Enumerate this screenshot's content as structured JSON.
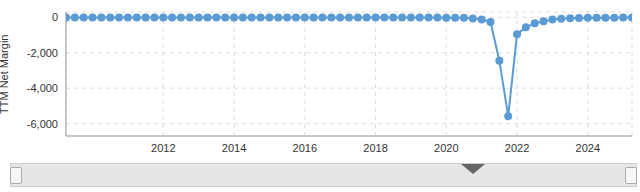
{
  "chart_data": {
    "type": "line",
    "y_label": "TTM Net Margin",
    "x": [
      2009.25,
      2009.5,
      2009.75,
      2010,
      2010.25,
      2010.5,
      2010.75,
      2011,
      2011.25,
      2011.5,
      2011.75,
      2012,
      2012.25,
      2012.5,
      2012.75,
      2013,
      2013.25,
      2013.5,
      2013.75,
      2014,
      2014.25,
      2014.5,
      2014.75,
      2015,
      2015.25,
      2015.5,
      2015.75,
      2016,
      2016.25,
      2016.5,
      2016.75,
      2017,
      2017.25,
      2017.5,
      2017.75,
      2018,
      2018.25,
      2018.5,
      2018.75,
      2019,
      2019.25,
      2019.5,
      2019.75,
      2020,
      2020.25,
      2020.5,
      2020.75,
      2021,
      2021.25,
      2021.5,
      2021.75,
      2022,
      2022.25,
      2022.5,
      2022.75,
      2023,
      2023.25,
      2023.5,
      2023.75,
      2024,
      2024.25,
      2024.5,
      2024.75,
      2025,
      2025.25
    ],
    "values": [
      -10,
      -12,
      -8,
      -10,
      -11,
      -9,
      -10,
      -12,
      -10,
      -9,
      -11,
      -10,
      -10,
      -12,
      -9,
      -10,
      -11,
      -10,
      -9,
      -10,
      -12,
      -10,
      -11,
      -9,
      -10,
      -10,
      -12,
      -11,
      -10,
      -9,
      -10,
      -11,
      -10,
      -12,
      -10,
      -9,
      -10,
      -11,
      -10,
      -12,
      -10,
      -11,
      -15,
      -20,
      -25,
      -30,
      -60,
      -120,
      -260,
      -2450,
      -5580,
      -950,
      -560,
      -340,
      -220,
      -130,
      -80,
      -50,
      -40,
      -30,
      -25,
      -20,
      -20,
      -15,
      -15
    ],
    "color": "#5b9bd5",
    "marker": "circle",
    "line_style": "solid",
    "xlim": [
      2009.25,
      2025.25
    ],
    "xticks": [
      2012,
      2014,
      2016,
      2018,
      2020,
      2022,
      2024
    ],
    "ylim": [
      -6700,
      300
    ],
    "yticks": [
      {
        "value": -6000,
        "label": "-6,000"
      },
      {
        "value": -4000,
        "label": "-4,000"
      },
      {
        "value": -2000,
        "label": "-2,000"
      },
      0
    ],
    "grid": true
  }
}
